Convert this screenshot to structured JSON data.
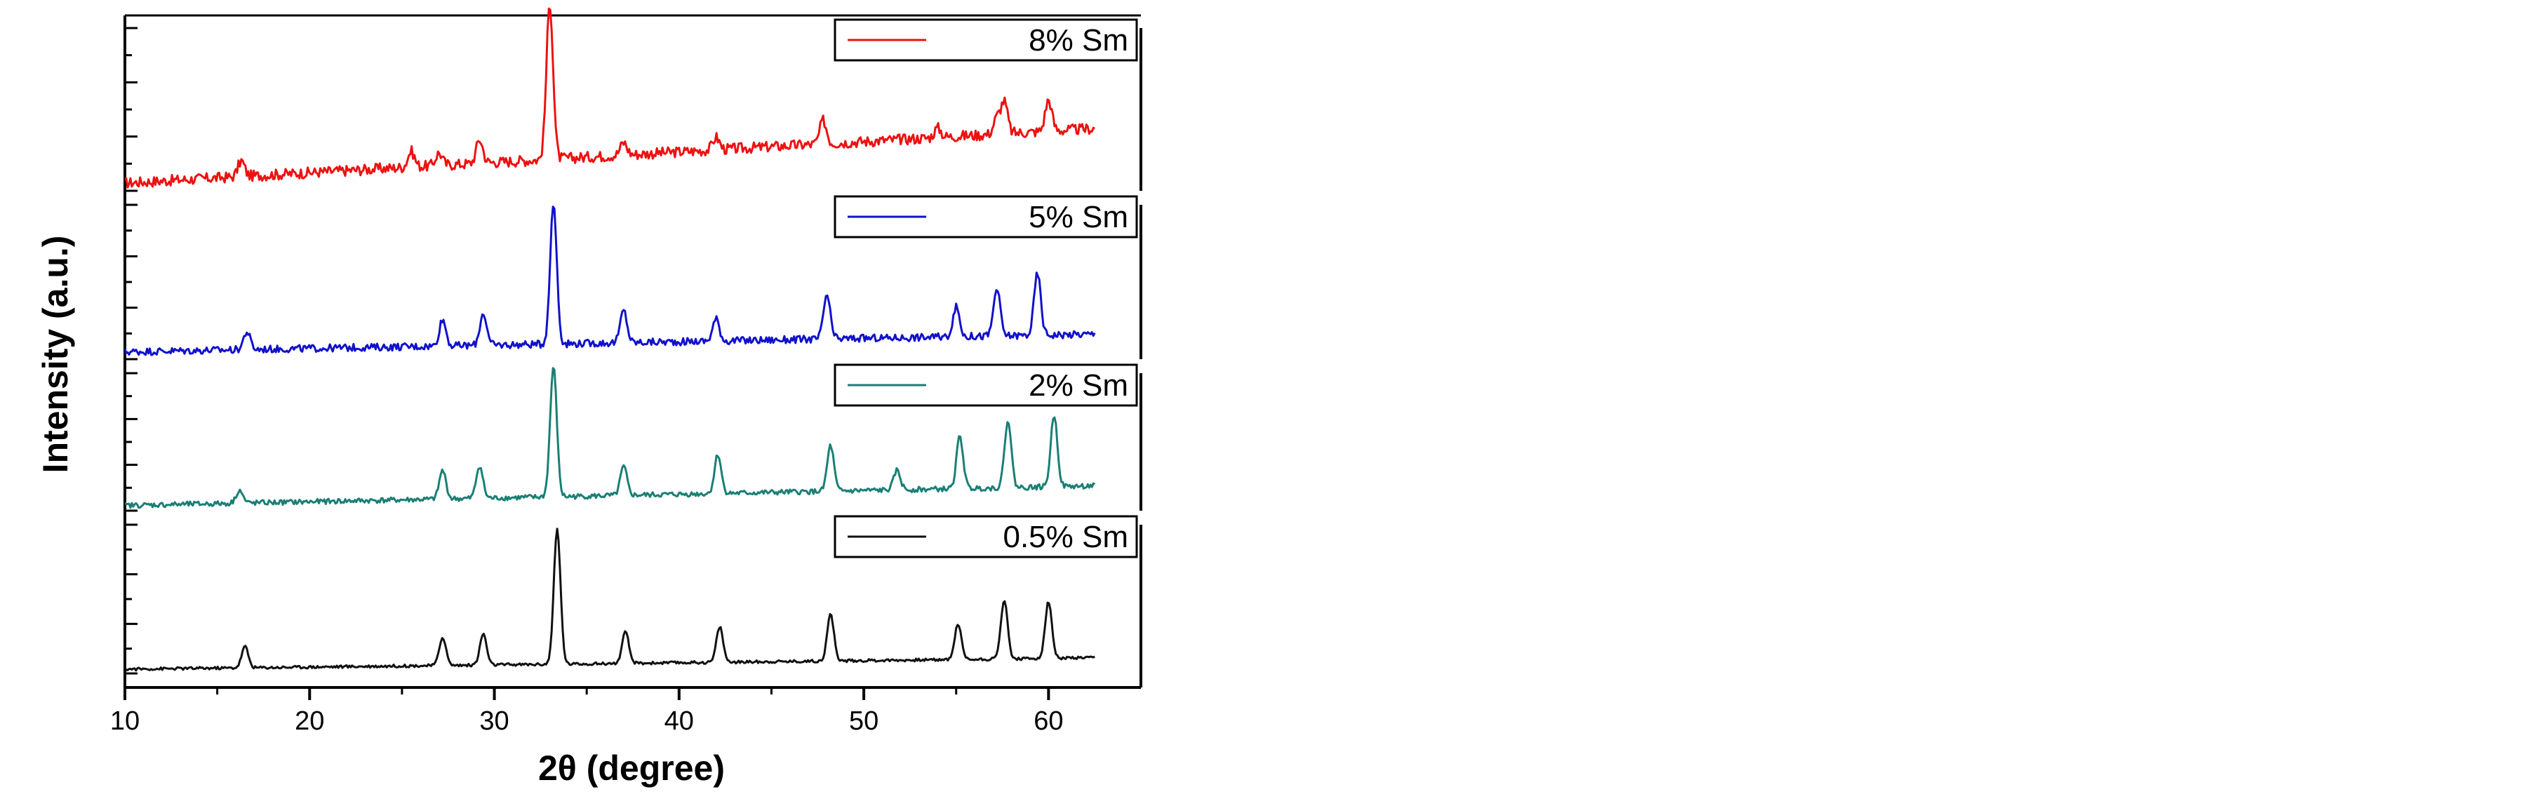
{
  "chart_data": {
    "type": "line",
    "xlabel": "2θ (degree)",
    "ylabel": "Intensity (a.u.)",
    "xlim": [
      10,
      65
    ],
    "xticks": [
      10,
      20,
      30,
      40,
      50,
      60
    ],
    "x_range": [
      10,
      62.5
    ],
    "layout": "stacked panels, top to bottom: 8% Sm, 5% Sm, 2% Sm, 0.5% Sm",
    "legend_placement": "top-right of each panel",
    "grid": false,
    "series": [
      {
        "name": "8% Sm",
        "color": "#ee1111",
        "baseline": 0.05,
        "slope": 0.35,
        "noise": 0.07,
        "peaks": [
          [
            16.3,
            0.1
          ],
          [
            25.5,
            0.1
          ],
          [
            27.0,
            0.08
          ],
          [
            29.2,
            0.15
          ],
          [
            33.0,
            1.0
          ],
          [
            37.0,
            0.08
          ],
          [
            42.0,
            0.08
          ],
          [
            47.8,
            0.15
          ],
          [
            54.0,
            0.06
          ],
          [
            57.2,
            0.1
          ],
          [
            57.6,
            0.2
          ],
          [
            60.0,
            0.2
          ]
        ]
      },
      {
        "name": "5% Sm",
        "color": "#1111cc",
        "baseline": 0.05,
        "slope": 0.12,
        "noise": 0.05,
        "peaks": [
          [
            16.6,
            0.12
          ],
          [
            27.2,
            0.18
          ],
          [
            29.4,
            0.22
          ],
          [
            33.2,
            0.95
          ],
          [
            37.0,
            0.22
          ],
          [
            42.0,
            0.15
          ],
          [
            48.0,
            0.3
          ],
          [
            55.0,
            0.2
          ],
          [
            57.2,
            0.32
          ],
          [
            59.4,
            0.42
          ]
        ]
      },
      {
        "name": "2% Sm",
        "color": "#1a7f74",
        "baseline": 0.04,
        "slope": 0.15,
        "noise": 0.04,
        "peaks": [
          [
            16.2,
            0.1
          ],
          [
            27.2,
            0.22
          ],
          [
            29.2,
            0.25
          ],
          [
            33.2,
            1.0
          ],
          [
            37.0,
            0.22
          ],
          [
            42.1,
            0.3
          ],
          [
            48.2,
            0.35
          ],
          [
            51.8,
            0.15
          ],
          [
            55.2,
            0.4
          ],
          [
            57.8,
            0.52
          ],
          [
            60.3,
            0.55
          ]
        ]
      },
      {
        "name": "0.5% Sm",
        "color": "#111111",
        "baseline": 0.03,
        "slope": 0.08,
        "noise": 0.02,
        "peaks": [
          [
            16.5,
            0.15
          ],
          [
            27.2,
            0.2
          ],
          [
            29.4,
            0.22
          ],
          [
            33.4,
            0.95
          ],
          [
            37.1,
            0.22
          ],
          [
            42.2,
            0.25
          ],
          [
            48.2,
            0.33
          ],
          [
            55.1,
            0.25
          ],
          [
            57.6,
            0.42
          ],
          [
            60.0,
            0.4
          ]
        ]
      }
    ]
  }
}
